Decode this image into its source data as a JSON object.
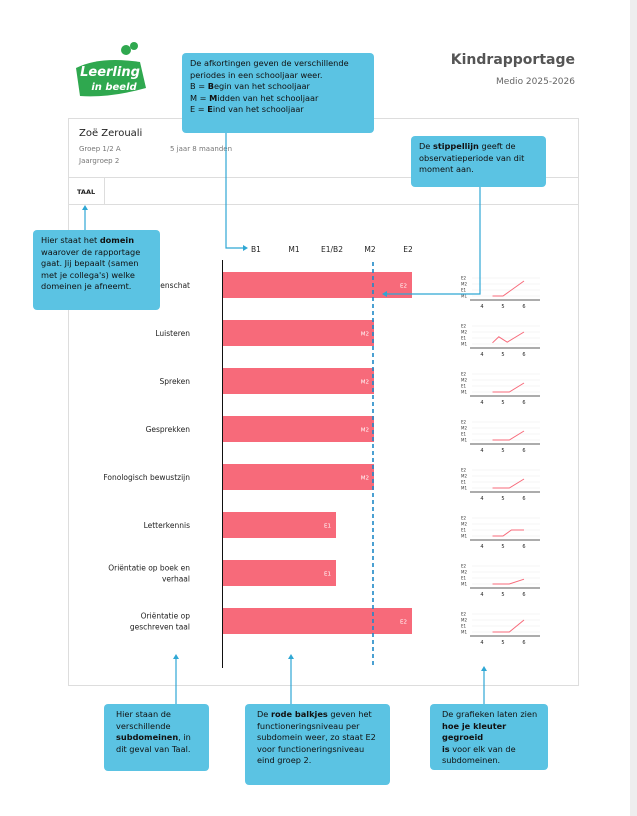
{
  "logo": {
    "line1": "Leerling",
    "line2": "in beeld"
  },
  "header": {
    "title": "Kindrapportage",
    "subtitle": "Medio 2025-2026"
  },
  "student": {
    "name": "Zoë Zerouali",
    "group": "Groep 1/2 A",
    "age": "5 jaar 8 maanden",
    "year_group": "Jaargroep 2"
  },
  "tab": "TAAL",
  "scale": [
    "B1",
    "M1",
    "E1/B2",
    "M2",
    "E2"
  ],
  "mini_chart": {
    "xlim": [
      3.5,
      6.5
    ],
    "xticks": [
      4,
      5,
      6
    ],
    "ylim": [
      0.5,
      4.5
    ],
    "yticks": [
      {
        "value": 4,
        "label": "E2"
      },
      {
        "value": 3,
        "label": "M2"
      },
      {
        "value": 2,
        "label": "E1"
      },
      {
        "value": 1,
        "label": "M1"
      }
    ]
  },
  "rows": [
    {
      "label": [
        "Woordenschat"
      ],
      "level": "E2",
      "growth_x": [
        4.5,
        5,
        6
      ],
      "growth_y": [
        1,
        1,
        3.5
      ]
    },
    {
      "label": [
        "Luisteren"
      ],
      "level": "M2",
      "growth_x": [
        4.5,
        4.8,
        5.2,
        6
      ],
      "growth_y": [
        1.2,
        2.2,
        1.3,
        3
      ]
    },
    {
      "label": [
        "Spreken"
      ],
      "level": "M2",
      "growth_x": [
        4.5,
        5.3,
        6
      ],
      "growth_y": [
        1,
        1,
        2.5
      ]
    },
    {
      "label": [
        "Gesprekken"
      ],
      "level": "M2",
      "growth_x": [
        4.5,
        5.3,
        6
      ],
      "growth_y": [
        1,
        1,
        2.5
      ]
    },
    {
      "label": [
        "Fonologisch bewustzijn"
      ],
      "level": "M2",
      "growth_x": [
        4.5,
        5.3,
        6
      ],
      "growth_y": [
        1,
        1,
        2.5
      ]
    },
    {
      "label": [
        "Letterkennis"
      ],
      "level": "E1",
      "growth_x": [
        4.5,
        5,
        5.4,
        6
      ],
      "growth_y": [
        1,
        1,
        2,
        2
      ]
    },
    {
      "label": [
        "Oriëntatie op boek en",
        "verhaal"
      ],
      "level": "E1",
      "growth_x": [
        4.5,
        5.3,
        6
      ],
      "growth_y": [
        1,
        1,
        1.8
      ]
    },
    {
      "label": [
        "Oriëntatie op",
        "geschreven taal"
      ],
      "level": "E2",
      "growth_x": [
        4.5,
        5.3,
        6
      ],
      "growth_y": [
        1,
        1,
        3
      ]
    }
  ],
  "callouts": [
    {
      "lines": [
        [
          {
            "t": "De afkortingen geven de verschillende"
          }
        ],
        [
          {
            "t": "periodes in een schooljaar weer."
          }
        ],
        [
          {
            "t": "B = "
          },
          {
            "t": "B",
            "b": true
          },
          {
            "t": "egin van het schooljaar"
          }
        ],
        [
          {
            "t": "M = "
          },
          {
            "t": "M",
            "b": true
          },
          {
            "t": "idden van het schooljaar"
          }
        ],
        [
          {
            "t": "E = "
          },
          {
            "t": "E",
            "b": true
          },
          {
            "t": "ind van het schooljaar"
          }
        ]
      ]
    },
    {
      "lines": [
        [
          {
            "t": "De "
          },
          {
            "t": "stippellijn",
            "b": true
          },
          {
            "t": " geeft de"
          }
        ],
        [
          {
            "t": "observatieperiode van dit"
          }
        ],
        [
          {
            "t": "moment aan."
          }
        ]
      ]
    },
    {
      "lines": [
        [
          {
            "t": "Hier staat het "
          },
          {
            "t": "domein",
            "b": true
          }
        ],
        [
          {
            "t": "waarover de rapportage"
          }
        ],
        [
          {
            "t": "gaat. Jij bepaalt (samen"
          }
        ],
        [
          {
            "t": "met je collega's) welke"
          }
        ],
        [
          {
            "t": "domeinen je afneemt."
          }
        ]
      ]
    },
    {
      "lines": [
        [
          {
            "t": "Hier staan de"
          }
        ],
        [
          {
            "t": "verschillende"
          }
        ],
        [
          {
            "t": "subdomeinen",
            "b": true
          },
          {
            "t": ", in"
          }
        ],
        [
          {
            "t": "dit geval van Taal."
          }
        ]
      ]
    },
    {
      "lines": [
        [
          {
            "t": "De "
          },
          {
            "t": "rode balkjes",
            "b": true
          },
          {
            "t": " geven het"
          }
        ],
        [
          {
            "t": "functioneringsniveau per"
          }
        ],
        [
          {
            "t": "subdomein weer, zo staat E2"
          }
        ],
        [
          {
            "t": "voor functioneringsniveau"
          }
        ],
        [
          {
            "t": "eind groep 2."
          }
        ]
      ]
    },
    {
      "lines": [
        [
          {
            "t": "De grafieken laten zien"
          }
        ],
        [
          {
            "t": "hoe je kleuter gegroeid",
            "b": true
          }
        ],
        [
          {
            "t": "is",
            "b": true
          },
          {
            "t": " voor elk van de"
          }
        ],
        [
          {
            "t": "subdomeinen."
          }
        ]
      ]
    }
  ]
}
